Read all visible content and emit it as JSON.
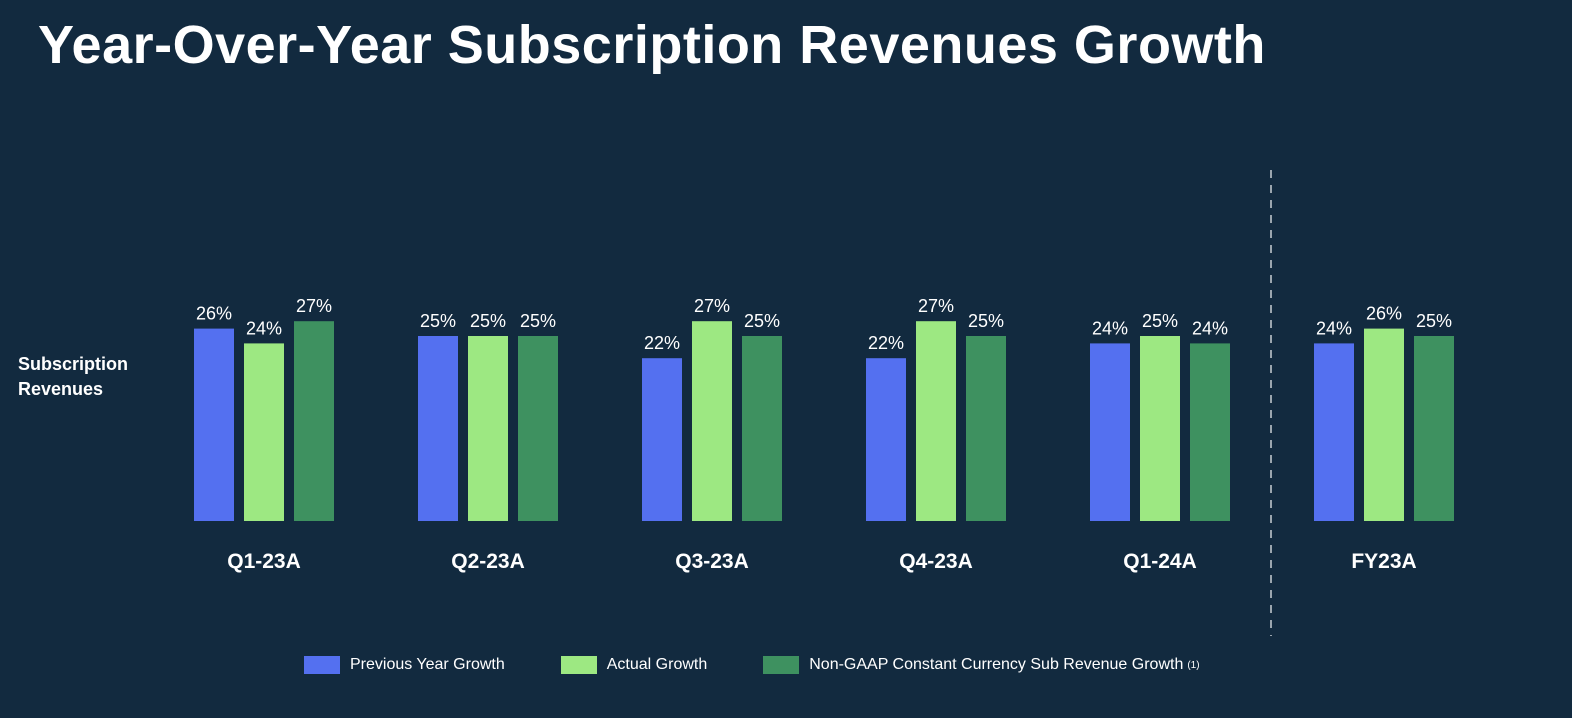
{
  "slide": {
    "title": "Year-Over-Year Subscription Revenues Growth",
    "row_label_line1": "Subscription",
    "row_label_line2": "Revenues"
  },
  "chart_data": {
    "type": "bar",
    "categories": [
      "Q1-23A",
      "Q2-23A",
      "Q3-23A",
      "Q4-23A",
      "Q1-24A",
      "FY23A"
    ],
    "series": [
      {
        "name": "Previous Year Growth",
        "color": "#5470f0",
        "values": [
          26,
          25,
          22,
          22,
          24,
          24
        ],
        "labels": [
          "26%",
          "25%",
          "22%",
          "22%",
          "24%",
          "24%"
        ]
      },
      {
        "name": "Actual Growth",
        "color": "#9de882",
        "values": [
          24,
          25,
          27,
          27,
          25,
          26
        ],
        "labels": [
          "24%",
          "25%",
          "27%",
          "27%",
          "25%",
          "26%"
        ]
      },
      {
        "name": "Non-GAAP Constant Currency Sub Revenue Growth",
        "footnote": "(1)",
        "color": "#3e9160",
        "values": [
          27,
          25,
          25,
          25,
          24,
          25
        ],
        "labels": [
          "27%",
          "25%",
          "25%",
          "25%",
          "24%",
          "25%"
        ]
      }
    ],
    "legend_position": "bottom",
    "grid": false,
    "separator_before": "FY23A"
  }
}
